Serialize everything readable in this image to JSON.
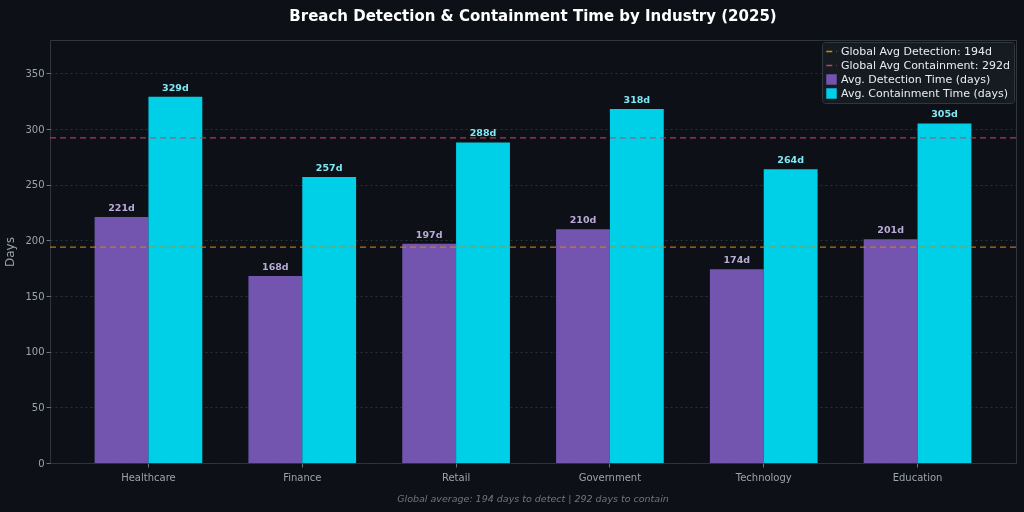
{
  "chart_data": {
    "type": "bar",
    "title": "Breach Detection & Containment Time by Industry (2025)",
    "ylabel": "Days",
    "categories": [
      "Healthcare",
      "Finance",
      "Retail",
      "Government",
      "Technology",
      "Education"
    ],
    "series": [
      {
        "name": "Avg. Detection Time (days)",
        "color": "#7355b0",
        "values": [
          221,
          168,
          197,
          210,
          174,
          201
        ],
        "value_labels": [
          "221d",
          "168d",
          "197d",
          "210d",
          "174d",
          "201d"
        ]
      },
      {
        "name": "Avg. Containment Time (days)",
        "color": "#00cfe8",
        "values": [
          329,
          257,
          288,
          318,
          264,
          305
        ],
        "value_labels": [
          "329d",
          "257d",
          "288d",
          "318d",
          "264d",
          "305d"
        ]
      }
    ],
    "ylim": [
      0,
      380
    ],
    "yticks": [
      0,
      50,
      100,
      150,
      200,
      250,
      300,
      350
    ],
    "grid": "y",
    "legend": "top right",
    "ref_lines": [
      {
        "axis": "y",
        "value": 194,
        "label": "Global Avg Detection: 194d",
        "color": "#d4870f",
        "line_style": "dashed"
      },
      {
        "axis": "y",
        "value": 292,
        "label": "Global Avg Containment: 292d",
        "color": "#c9415f",
        "line_style": "dashed"
      }
    ],
    "annotations": [
      "Global average: 194 days to detect | 292 days to contain"
    ]
  }
}
